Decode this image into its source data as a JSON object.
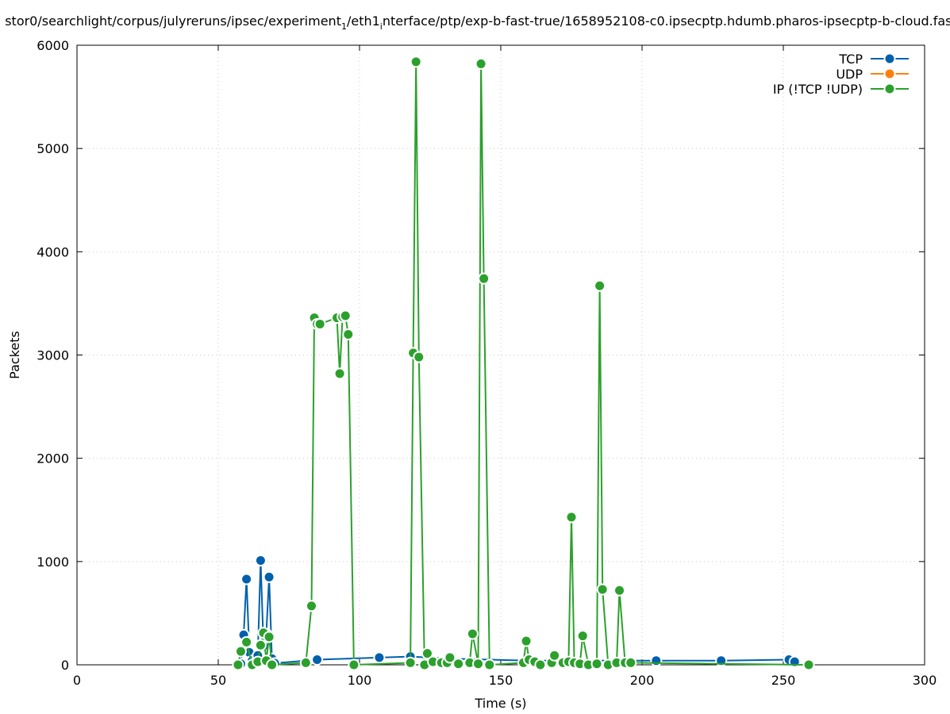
{
  "chart_data": {
    "type": "line",
    "title": "stor0/searchlight/corpus/julyreruns/ipsec/experiment_1/eth1_interface/ptp/exp-b-fast-true/1658952108-c0.ipsecptp.hdumb.pharos-ipsecptp-b-cloud.fast",
    "title_parts": [
      {
        "text": "stor0/searchlight/corpus/julyreruns/ipsec/experiment",
        "sub": false
      },
      {
        "text": "1",
        "sub": true
      },
      {
        "text": "/eth1",
        "sub": false
      },
      {
        "text": "i",
        "sub": true
      },
      {
        "text": "nterface/ptp/exp-b-fast-true/1658952108-c0.ipsecptp.hdumb.pharos-ipsecptp-b-cloud.fast",
        "sub": false
      }
    ],
    "xlabel": "Time (s)",
    "ylabel": "Packets",
    "xlim": [
      0,
      300
    ],
    "ylim": [
      0,
      6000
    ],
    "xticks": [
      0,
      50,
      100,
      150,
      200,
      250,
      300
    ],
    "yticks": [
      0,
      1000,
      2000,
      3000,
      4000,
      5000,
      6000
    ],
    "grid": true,
    "legend_position": "top-right",
    "series": [
      {
        "name": "TCP",
        "color": "#0060ad",
        "points": [
          [
            58,
            10
          ],
          [
            59,
            290
          ],
          [
            60,
            830
          ],
          [
            61,
            120
          ],
          [
            62,
            40
          ],
          [
            63,
            20
          ],
          [
            64,
            90
          ],
          [
            65,
            1010
          ],
          [
            66,
            180
          ],
          [
            67,
            300
          ],
          [
            68,
            850
          ],
          [
            69,
            60
          ],
          [
            70,
            15
          ],
          [
            85,
            50
          ],
          [
            107,
            70
          ],
          [
            118,
            80
          ],
          [
            132,
            60
          ],
          [
            160,
            40
          ],
          [
            205,
            40
          ],
          [
            228,
            40
          ],
          [
            252,
            50
          ],
          [
            254,
            30
          ]
        ]
      },
      {
        "name": "UDP",
        "color": "#ff7f0e",
        "points": []
      },
      {
        "name": "IP (!TCP  !UDP)",
        "color": "#2ca02c",
        "points": [
          [
            57,
            0
          ],
          [
            58,
            130
          ],
          [
            60,
            220
          ],
          [
            62,
            0
          ],
          [
            64,
            30
          ],
          [
            65,
            190
          ],
          [
            66,
            310
          ],
          [
            67,
            40
          ],
          [
            68,
            270
          ],
          [
            69,
            0
          ],
          [
            81,
            20
          ],
          [
            83,
            570
          ],
          [
            84,
            3360
          ],
          [
            85,
            3300
          ],
          [
            86,
            3300
          ],
          [
            92,
            3360
          ],
          [
            93,
            2820
          ],
          [
            94,
            3370
          ],
          [
            95,
            3380
          ],
          [
            96,
            3200
          ],
          [
            98,
            0
          ],
          [
            118,
            20
          ],
          [
            119,
            3020
          ],
          [
            120,
            5840
          ],
          [
            121,
            2980
          ],
          [
            123,
            0
          ],
          [
            124,
            110
          ],
          [
            126,
            30
          ],
          [
            129,
            20
          ],
          [
            131,
            20
          ],
          [
            132,
            70
          ],
          [
            135,
            10
          ],
          [
            139,
            20
          ],
          [
            140,
            300
          ],
          [
            142,
            10
          ],
          [
            143,
            5820
          ],
          [
            144,
            3740
          ],
          [
            146,
            0
          ],
          [
            158,
            20
          ],
          [
            159,
            230
          ],
          [
            160,
            50
          ],
          [
            162,
            30
          ],
          [
            164,
            0
          ],
          [
            168,
            20
          ],
          [
            169,
            90
          ],
          [
            172,
            20
          ],
          [
            174,
            30
          ],
          [
            175,
            1430
          ],
          [
            176,
            20
          ],
          [
            178,
            10
          ],
          [
            179,
            280
          ],
          [
            181,
            0
          ],
          [
            184,
            10
          ],
          [
            185,
            3670
          ],
          [
            186,
            730
          ],
          [
            188,
            0
          ],
          [
            191,
            20
          ],
          [
            192,
            720
          ],
          [
            194,
            20
          ],
          [
            196,
            20
          ],
          [
            259,
            0
          ]
        ]
      }
    ]
  }
}
